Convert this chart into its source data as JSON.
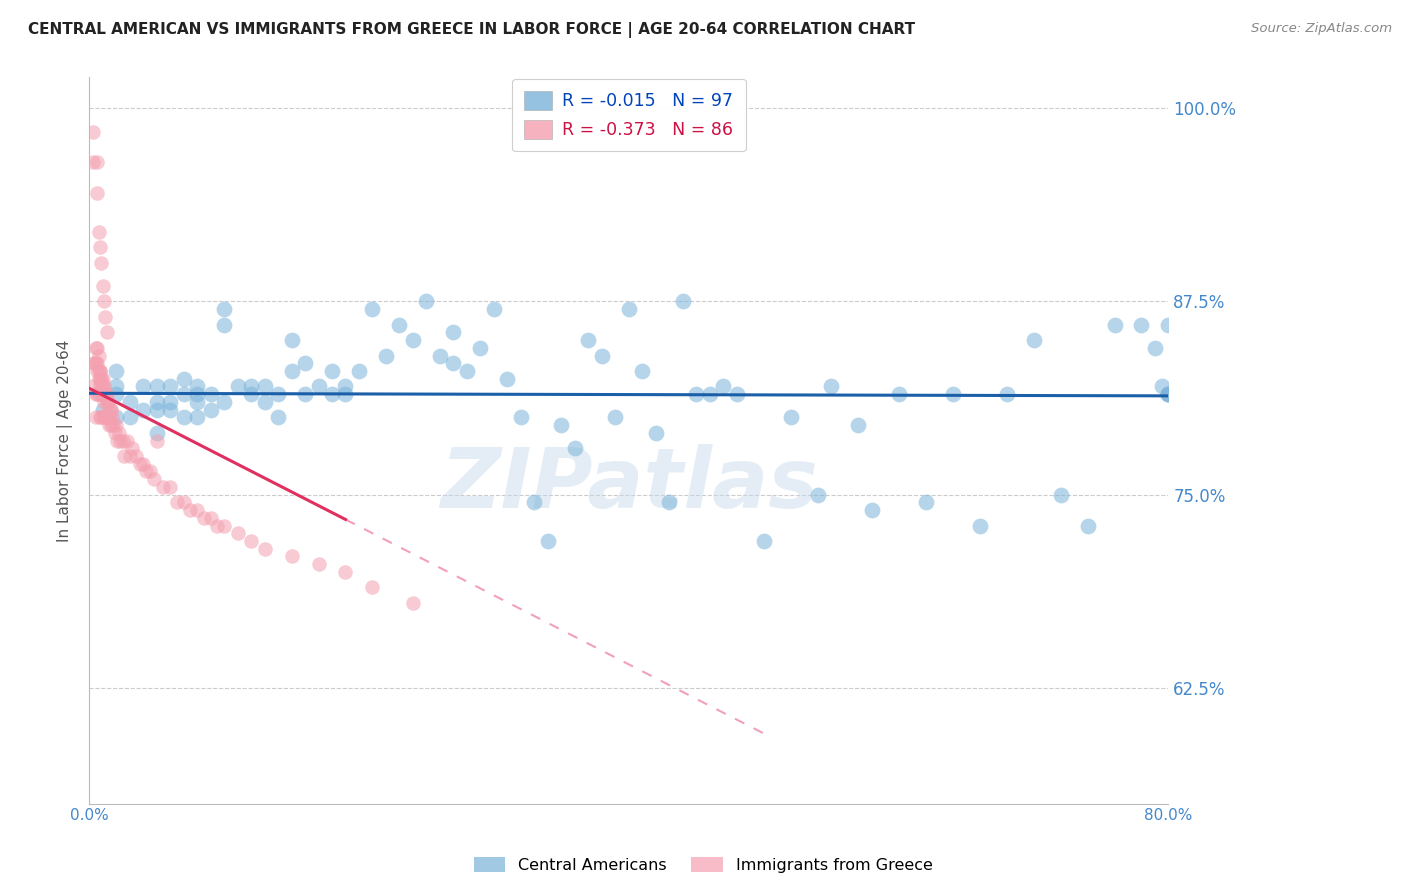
{
  "title": "CENTRAL AMERICAN VS IMMIGRANTS FROM GREECE IN LABOR FORCE | AGE 20-64 CORRELATION CHART",
  "source": "Source: ZipAtlas.com",
  "ylabel": "In Labor Force | Age 20-64",
  "xlim": [
    0.0,
    0.8
  ],
  "ylim": [
    0.55,
    1.02
  ],
  "xticks": [
    0.0,
    0.1,
    0.2,
    0.3,
    0.4,
    0.5,
    0.6,
    0.7,
    0.8
  ],
  "xticklabels": [
    "0.0%",
    "",
    "",
    "",
    "",
    "",
    "",
    "",
    "80.0%"
  ],
  "yticks": [
    0.625,
    0.75,
    0.875,
    1.0
  ],
  "yticklabels": [
    "62.5%",
    "75.0%",
    "87.5%",
    "100.0%"
  ],
  "blue_color": "#7ab3d9",
  "pink_color": "#f4a0b0",
  "blue_line_color": "#1a5fa8",
  "pink_line_color": "#e03060",
  "blue_R": -0.015,
  "blue_N": 97,
  "pink_R": -0.373,
  "pink_N": 86,
  "watermark": "ZIPatlas",
  "grid_color": "#cccccc",
  "grid_style": "--",
  "legend_label_blue": "Central Americans",
  "legend_label_pink": "Immigrants from Greece",
  "blue_scatter_x": [
    0.01,
    0.01,
    0.02,
    0.02,
    0.02,
    0.02,
    0.03,
    0.03,
    0.04,
    0.04,
    0.05,
    0.05,
    0.05,
    0.05,
    0.06,
    0.06,
    0.06,
    0.07,
    0.07,
    0.07,
    0.08,
    0.08,
    0.08,
    0.08,
    0.09,
    0.09,
    0.1,
    0.1,
    0.1,
    0.11,
    0.12,
    0.12,
    0.13,
    0.13,
    0.14,
    0.14,
    0.15,
    0.15,
    0.16,
    0.16,
    0.17,
    0.18,
    0.18,
    0.19,
    0.19,
    0.2,
    0.21,
    0.22,
    0.23,
    0.24,
    0.25,
    0.26,
    0.27,
    0.27,
    0.28,
    0.29,
    0.3,
    0.31,
    0.32,
    0.33,
    0.34,
    0.35,
    0.36,
    0.37,
    0.38,
    0.39,
    0.4,
    0.41,
    0.42,
    0.43,
    0.44,
    0.45,
    0.46,
    0.47,
    0.48,
    0.5,
    0.52,
    0.54,
    0.55,
    0.57,
    0.58,
    0.6,
    0.62,
    0.64,
    0.66,
    0.68,
    0.7,
    0.72,
    0.74,
    0.76,
    0.78,
    0.79,
    0.795,
    0.8,
    0.8,
    0.8,
    0.8
  ],
  "blue_scatter_y": [
    0.805,
    0.815,
    0.82,
    0.8,
    0.815,
    0.83,
    0.8,
    0.81,
    0.805,
    0.82,
    0.79,
    0.805,
    0.81,
    0.82,
    0.805,
    0.81,
    0.82,
    0.8,
    0.815,
    0.825,
    0.8,
    0.81,
    0.815,
    0.82,
    0.805,
    0.815,
    0.87,
    0.86,
    0.81,
    0.82,
    0.815,
    0.82,
    0.81,
    0.82,
    0.8,
    0.815,
    0.83,
    0.85,
    0.815,
    0.835,
    0.82,
    0.815,
    0.83,
    0.815,
    0.82,
    0.83,
    0.87,
    0.84,
    0.86,
    0.85,
    0.875,
    0.84,
    0.835,
    0.855,
    0.83,
    0.845,
    0.87,
    0.825,
    0.8,
    0.745,
    0.72,
    0.795,
    0.78,
    0.85,
    0.84,
    0.8,
    0.87,
    0.83,
    0.79,
    0.745,
    0.875,
    0.815,
    0.815,
    0.82,
    0.815,
    0.72,
    0.8,
    0.75,
    0.82,
    0.795,
    0.74,
    0.815,
    0.745,
    0.815,
    0.73,
    0.815,
    0.85,
    0.75,
    0.73,
    0.86,
    0.86,
    0.845,
    0.82,
    0.86,
    0.815,
    0.815,
    0.815
  ],
  "pink_scatter_x": [
    0.003,
    0.003,
    0.004,
    0.005,
    0.005,
    0.005,
    0.005,
    0.006,
    0.006,
    0.006,
    0.007,
    0.007,
    0.007,
    0.008,
    0.008,
    0.008,
    0.009,
    0.009,
    0.009,
    0.01,
    0.01,
    0.01,
    0.011,
    0.011,
    0.011,
    0.012,
    0.012,
    0.013,
    0.013,
    0.014,
    0.014,
    0.015,
    0.015,
    0.016,
    0.016,
    0.017,
    0.018,
    0.019,
    0.02,
    0.021,
    0.022,
    0.023,
    0.025,
    0.026,
    0.028,
    0.03,
    0.032,
    0.035,
    0.038,
    0.04,
    0.042,
    0.045,
    0.048,
    0.05,
    0.055,
    0.06,
    0.065,
    0.07,
    0.075,
    0.08,
    0.085,
    0.09,
    0.095,
    0.1,
    0.11,
    0.12,
    0.13,
    0.15,
    0.17,
    0.19,
    0.21,
    0.24,
    0.006,
    0.007,
    0.008,
    0.008,
    0.009,
    0.009,
    0.01,
    0.01,
    0.011,
    0.012,
    0.013,
    0.014,
    0.015,
    0.016
  ],
  "pink_scatter_y": [
    0.835,
    0.82,
    0.835,
    0.845,
    0.835,
    0.815,
    0.8,
    0.845,
    0.83,
    0.815,
    0.84,
    0.825,
    0.815,
    0.83,
    0.82,
    0.8,
    0.825,
    0.815,
    0.8,
    0.825,
    0.815,
    0.8,
    0.815,
    0.82,
    0.81,
    0.815,
    0.8,
    0.815,
    0.8,
    0.81,
    0.8,
    0.8,
    0.795,
    0.805,
    0.795,
    0.8,
    0.795,
    0.79,
    0.795,
    0.785,
    0.79,
    0.785,
    0.785,
    0.775,
    0.785,
    0.775,
    0.78,
    0.775,
    0.77,
    0.77,
    0.765,
    0.765,
    0.76,
    0.785,
    0.755,
    0.755,
    0.745,
    0.745,
    0.74,
    0.74,
    0.735,
    0.735,
    0.73,
    0.73,
    0.725,
    0.72,
    0.715,
    0.71,
    0.705,
    0.7,
    0.69,
    0.68,
    0.835,
    0.83,
    0.83,
    0.825,
    0.825,
    0.82,
    0.82,
    0.815,
    0.815,
    0.815,
    0.81,
    0.81,
    0.805,
    0.805
  ],
  "pink_outliers_x": [
    0.003,
    0.003,
    0.006,
    0.006,
    0.007,
    0.008,
    0.009,
    0.01,
    0.011,
    0.012,
    0.013
  ],
  "pink_outliers_y": [
    0.985,
    0.965,
    0.965,
    0.945,
    0.92,
    0.91,
    0.9,
    0.885,
    0.875,
    0.865,
    0.855
  ]
}
